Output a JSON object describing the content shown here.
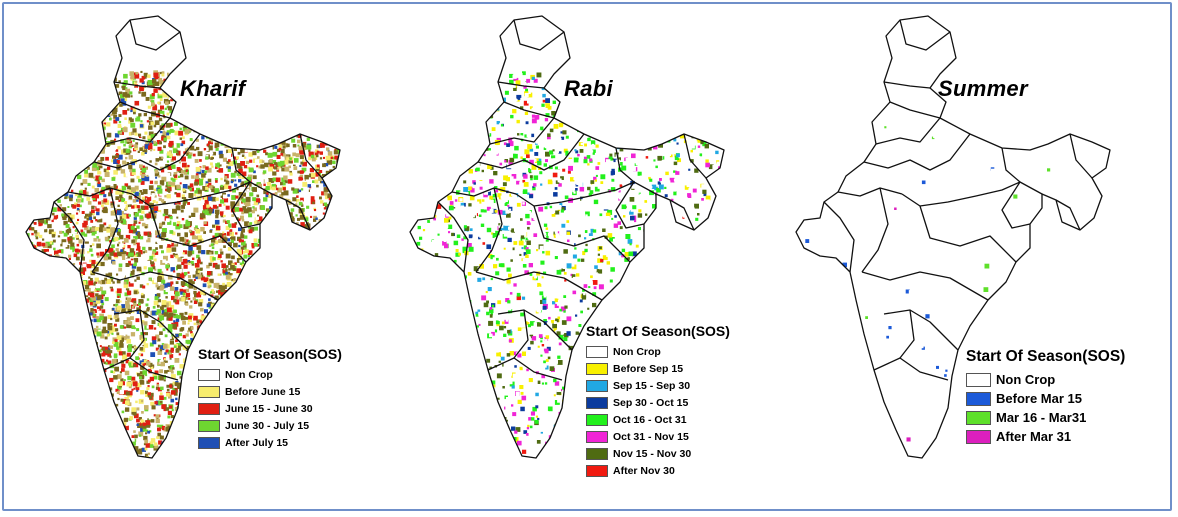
{
  "colors": {
    "non_crop": "#ffffff",
    "kharif": [
      "#ffffff",
      "#f7ec6e",
      "#e01f12",
      "#6ed630",
      "#1f4fb4"
    ],
    "rabi": [
      "#ffffff",
      "#f8f000",
      "#21a8e3",
      "#0b3b9e",
      "#22f01c",
      "#f024d6",
      "#4f6b12",
      "#f01a10"
    ],
    "summer": [
      "#ffffff",
      "#1c5ad8",
      "#5ee02a",
      "#dc1fbe"
    ]
  },
  "panels": [
    {
      "title": "Kharif",
      "legend_heading": "Start Of Season(SOS)",
      "legend": [
        {
          "label": "Non Crop",
          "color": "#ffffff"
        },
        {
          "label": "Before June 15",
          "color": "#f7ec6e"
        },
        {
          "label": "June 15 - June 30",
          "color": "#e01f12"
        },
        {
          "label": "June 30 - July 15",
          "color": "#6ed630"
        },
        {
          "label": "After July 15",
          "color": "#1f4fb4"
        }
      ]
    },
    {
      "title": "Rabi",
      "legend_heading": "Start Of Season(SOS)",
      "legend": [
        {
          "label": "Non Crop",
          "color": "#ffffff"
        },
        {
          "label": "Before Sep 15",
          "color": "#f8f000"
        },
        {
          "label": "Sep 15 - Sep 30",
          "color": "#21a8e3"
        },
        {
          "label": "Sep 30 - Oct 15",
          "color": "#0b3b9e"
        },
        {
          "label": "Oct 16 - Oct 31",
          "color": "#22f01c"
        },
        {
          "label": "Oct 31 - Nov 15",
          "color": "#f024d6"
        },
        {
          "label": "Nov 15 - Nov 30",
          "color": "#4f6b12"
        },
        {
          "label": "After Nov 30",
          "color": "#f01a10"
        }
      ]
    },
    {
      "title": "Summer",
      "legend_heading": "Start Of Season(SOS)",
      "legend": [
        {
          "label": "Non Crop",
          "color": "#ffffff"
        },
        {
          "label": "Before Mar 15",
          "color": "#1c5ad8"
        },
        {
          "label": "Mar 16 - Mar31",
          "color": "#5ee02a"
        },
        {
          "label": "After Mar 31",
          "color": "#dc1fbe"
        }
      ]
    }
  ]
}
